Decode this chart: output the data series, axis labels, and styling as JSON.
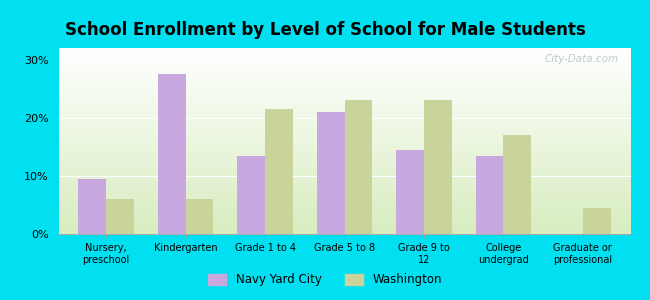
{
  "title": "School Enrollment by Level of School for Male Students",
  "categories": [
    "Nursery,\npreschool",
    "Kindergarten",
    "Grade 1 to 4",
    "Grade 5 to 8",
    "Grade 9 to\n12",
    "College\nundergrad",
    "Graduate or\nprofessional"
  ],
  "navy_yard_city": [
    9.5,
    27.5,
    13.5,
    21.0,
    14.5,
    13.5,
    0.0
  ],
  "washington": [
    6.0,
    6.0,
    21.5,
    23.0,
    23.0,
    17.0,
    4.5
  ],
  "navy_yard_color": "#c9a8e0",
  "washington_color": "#c8d49a",
  "background_outer": "#00e0f0",
  "ylim": [
    0,
    32
  ],
  "yticks": [
    0,
    10,
    20,
    30
  ],
  "ytick_labels": [
    "0%",
    "10%",
    "20%",
    "30%"
  ],
  "legend_navy": "Navy Yard City",
  "legend_washington": "Washington",
  "bar_width": 0.35,
  "title_fontsize": 12,
  "watermark": "City-Data.com"
}
